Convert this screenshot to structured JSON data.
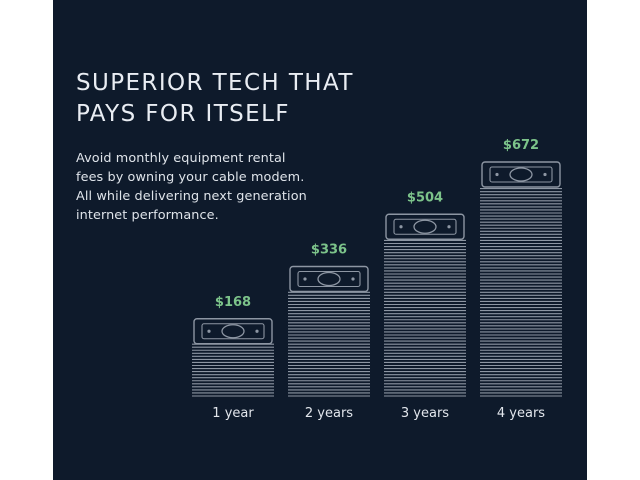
{
  "headline": {
    "lines": [
      "SUPERIOR TECH THAT",
      "PAYS FOR ITSELF"
    ]
  },
  "description": {
    "lines": [
      "Avoid monthly equipment rental",
      "fees by owning your cable modem.",
      "All while delivering next generation",
      "internet performance."
    ]
  },
  "colors": {
    "background": "#0e1a2b",
    "stack": "#8d96a3",
    "value_label": "#7cc38a",
    "text": "#e2e6ec"
  },
  "chart_data": {
    "type": "bar",
    "title": "",
    "xlabel": "",
    "ylabel": "",
    "categories": [
      "1 year",
      "2 years",
      "3 years",
      "4 years"
    ],
    "values": [
      168,
      336,
      504,
      672
    ],
    "value_labels": [
      "$168",
      "$336",
      "$504",
      "$672"
    ],
    "ylim": [
      0,
      672
    ],
    "grid": false,
    "legend": "none",
    "bar_style": "stack-of-bills"
  }
}
